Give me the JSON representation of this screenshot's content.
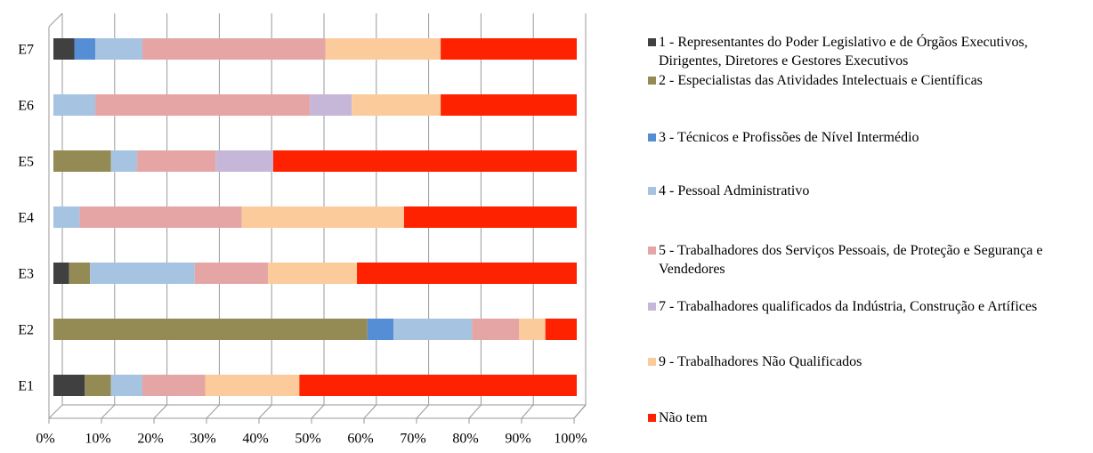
{
  "chart_data": {
    "type": "stacked-bar-horizontal",
    "categories": [
      "E1",
      "E2",
      "E3",
      "E4",
      "E5",
      "E6",
      "E7"
    ],
    "series": [
      {
        "name": "1 - Representantes do Poder Legislativo e de Órgãos Executivos, Dirigentes, Diretores e Gestores Executivos",
        "color": "#404040",
        "values": [
          6,
          0,
          3,
          0,
          0,
          0,
          4
        ]
      },
      {
        "name": "2 - Especialistas das Atividades Intelectuais e Científicas",
        "color": "#948a54",
        "values": [
          5,
          60,
          4,
          0,
          11,
          0,
          0
        ]
      },
      {
        "name": "3 - Técnicos e Profissões de Nível Intermédio",
        "color": "#558ed5",
        "values": [
          0,
          5,
          0,
          0,
          0,
          0,
          4
        ]
      },
      {
        "name": "4 - Pessoal Administrativo",
        "color": "#a6c4e2",
        "values": [
          6,
          15,
          20,
          5,
          5,
          8,
          9
        ]
      },
      {
        "name": "5 - Trabalhadores dos Serviços Pessoais, de Proteção e Segurança e Vendedores",
        "color": "#e6a5a5",
        "values": [
          12,
          9,
          14,
          31,
          15,
          41,
          35
        ]
      },
      {
        "name": "7 - Trabalhadores qualificados da Indústria, Construção e Artífices",
        "color": "#c6b6d8",
        "values": [
          0,
          0,
          0,
          0,
          11,
          8,
          0
        ]
      },
      {
        "name": "9 - Trabalhadores Não Qualificados",
        "color": "#fbcb9c",
        "values": [
          18,
          5,
          17,
          31,
          0,
          17,
          22
        ]
      },
      {
        "name": "Não tem",
        "color": "#ff2200",
        "values": [
          53,
          6,
          42,
          33,
          58,
          26,
          26
        ]
      }
    ],
    "xlim": [
      0,
      100
    ],
    "xticks": [
      {
        "value": 0,
        "label": "0%"
      },
      {
        "value": 10,
        "label": "10%"
      },
      {
        "value": 20,
        "label": "20%"
      },
      {
        "value": 30,
        "label": "30%"
      },
      {
        "value": 40,
        "label": "40%"
      },
      {
        "value": 50,
        "label": "50%"
      },
      {
        "value": 60,
        "label": "60%"
      },
      {
        "value": 70,
        "label": "70%"
      },
      {
        "value": 80,
        "label": "80%"
      },
      {
        "value": 90,
        "label": "90%"
      },
      {
        "value": 100,
        "label": "100%"
      }
    ],
    "grid": true,
    "legend": "right"
  }
}
